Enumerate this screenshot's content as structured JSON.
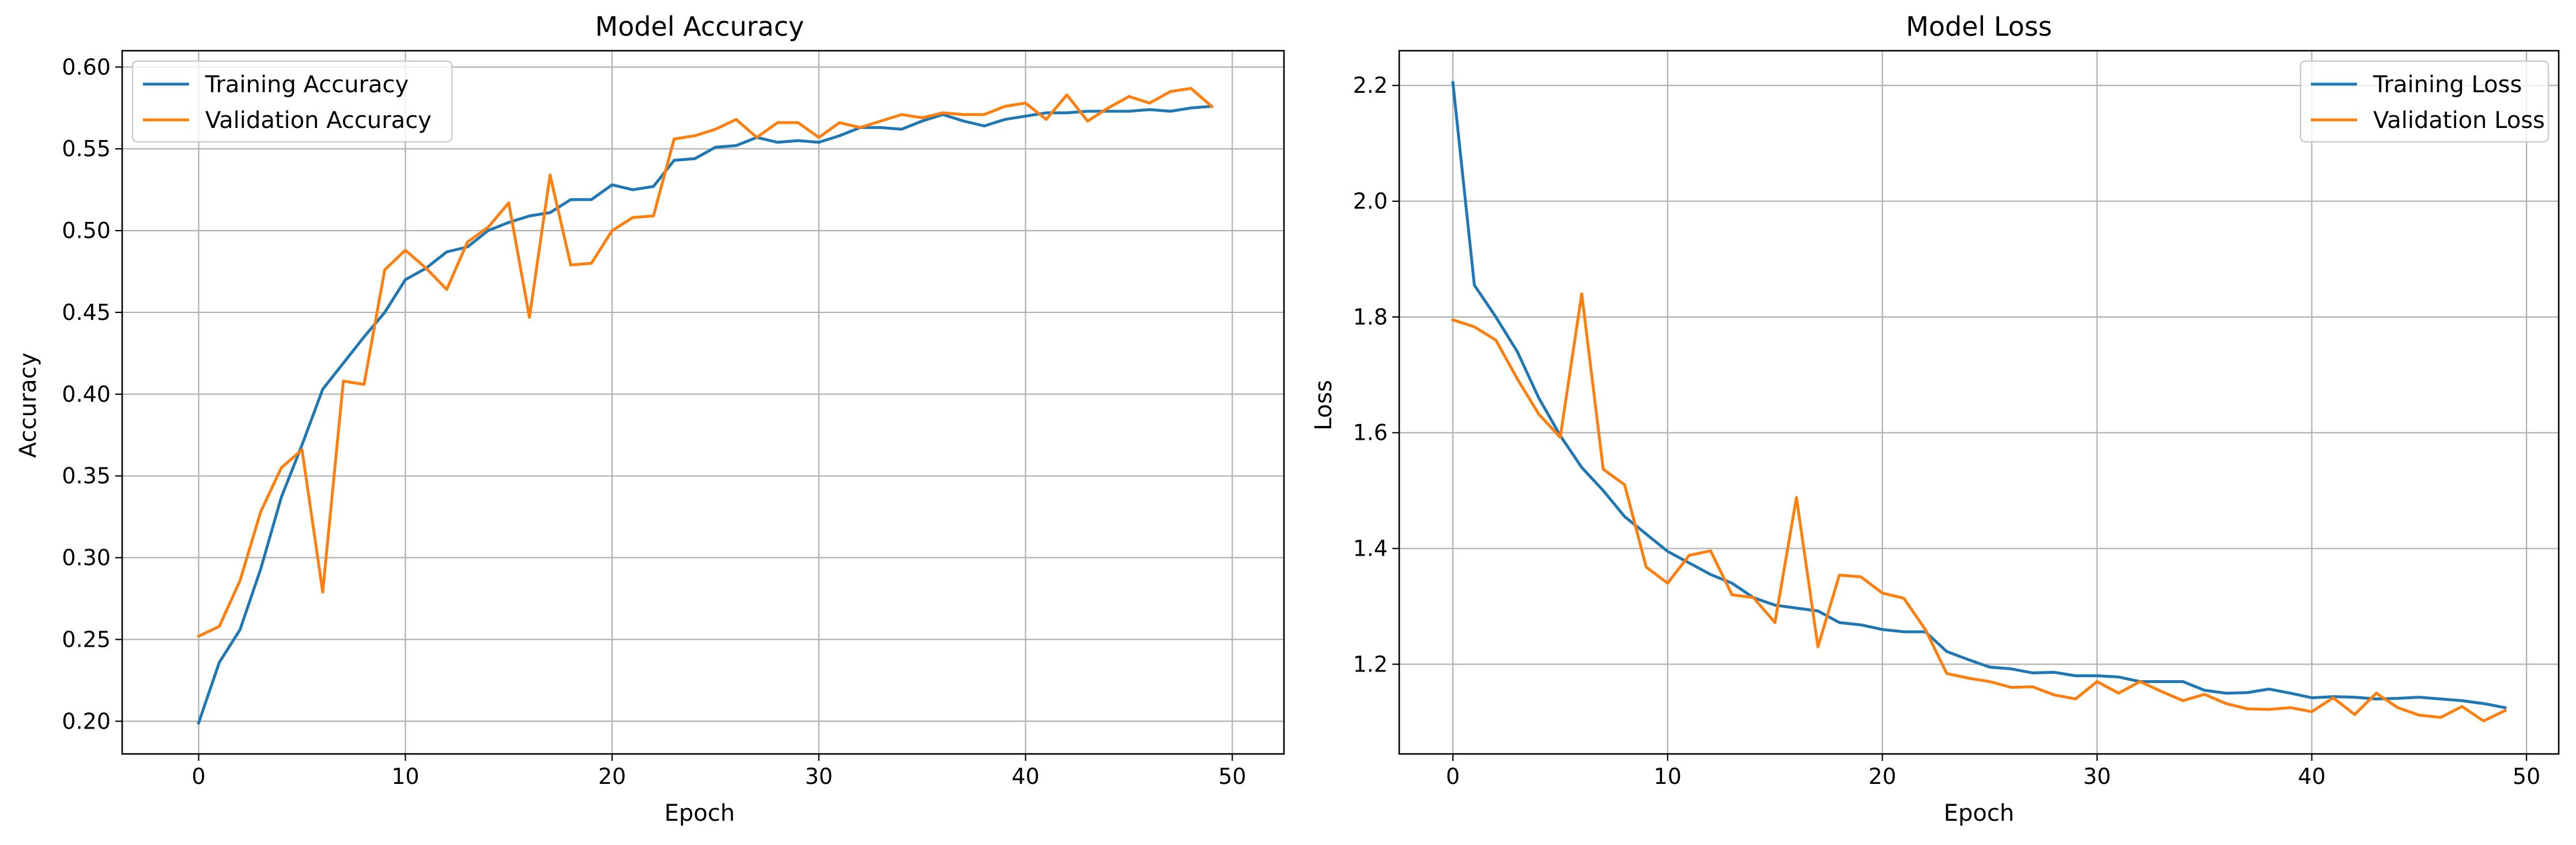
{
  "chart_data": [
    {
      "type": "line",
      "title": "Model Accuracy",
      "xlabel": "Epoch",
      "ylabel": "Accuracy",
      "xlim": [
        -3.7,
        52.5
      ],
      "ylim": [
        0.18,
        0.61
      ],
      "xticks": [
        0,
        10,
        20,
        30,
        40,
        50
      ],
      "yticks": [
        0.2,
        0.25,
        0.3,
        0.35,
        0.4,
        0.45,
        0.5,
        0.55,
        0.6
      ],
      "ytick_labels": [
        "0.20",
        "0.25",
        "0.30",
        "0.35",
        "0.40",
        "0.45",
        "0.50",
        "0.55",
        "0.60"
      ],
      "grid": true,
      "legend_position": "upper left",
      "x": [
        0,
        1,
        2,
        3,
        4,
        5,
        6,
        7,
        8,
        9,
        10,
        11,
        12,
        13,
        14,
        15,
        16,
        17,
        18,
        19,
        20,
        21,
        22,
        23,
        24,
        25,
        26,
        27,
        28,
        29,
        30,
        31,
        32,
        33,
        34,
        35,
        36,
        37,
        38,
        39,
        40,
        41,
        42,
        43,
        44,
        45,
        46,
        47,
        48,
        49
      ],
      "series": [
        {
          "name": "Training Accuracy",
          "color": "#1f77b4",
          "values": [
            0.199,
            0.236,
            0.256,
            0.293,
            0.337,
            0.369,
            0.403,
            0.419,
            0.435,
            0.45,
            0.47,
            0.477,
            0.487,
            0.49,
            0.5,
            0.505,
            0.509,
            0.511,
            0.519,
            0.519,
            0.528,
            0.525,
            0.527,
            0.543,
            0.544,
            0.551,
            0.552,
            0.557,
            0.554,
            0.555,
            0.554,
            0.558,
            0.563,
            0.563,
            0.562,
            0.567,
            0.571,
            0.567,
            0.564,
            0.568,
            0.57,
            0.572,
            0.572,
            0.573,
            0.573,
            0.573,
            0.574,
            0.573,
            0.575,
            0.576
          ]
        },
        {
          "name": "Validation Accuracy",
          "color": "#ff7f0e",
          "values": [
            0.252,
            0.258,
            0.286,
            0.328,
            0.355,
            0.366,
            0.279,
            0.408,
            0.406,
            0.476,
            0.488,
            0.477,
            0.464,
            0.493,
            0.502,
            0.517,
            0.447,
            0.534,
            0.479,
            0.48,
            0.5,
            0.508,
            0.509,
            0.556,
            0.558,
            0.562,
            0.568,
            0.557,
            0.566,
            0.566,
            0.557,
            0.566,
            0.563,
            0.567,
            0.571,
            0.569,
            0.572,
            0.571,
            0.571,
            0.576,
            0.578,
            0.568,
            0.583,
            0.567,
            0.575,
            0.582,
            0.578,
            0.585,
            0.587,
            0.576
          ]
        }
      ]
    },
    {
      "type": "line",
      "title": "Model Loss",
      "xlabel": "Epoch",
      "ylabel": "Loss",
      "xlim": [
        -2.5,
        51.5
      ],
      "ylim": [
        1.045,
        2.26
      ],
      "xticks": [
        0,
        10,
        20,
        30,
        40,
        50
      ],
      "yticks": [
        1.2,
        1.4,
        1.6,
        1.8,
        2.0,
        2.2
      ],
      "ytick_labels": [
        "1.2",
        "1.4",
        "1.6",
        "1.8",
        "2.0",
        "2.2"
      ],
      "grid": true,
      "legend_position": "upper right",
      "x": [
        0,
        1,
        2,
        3,
        4,
        5,
        6,
        7,
        8,
        9,
        10,
        11,
        12,
        13,
        14,
        15,
        16,
        17,
        18,
        19,
        20,
        21,
        22,
        23,
        24,
        25,
        26,
        27,
        28,
        29,
        30,
        31,
        32,
        33,
        34,
        35,
        36,
        37,
        38,
        39,
        40,
        41,
        42,
        43,
        44,
        45,
        46,
        47,
        48,
        49
      ],
      "series": [
        {
          "name": "Training Loss",
          "color": "#1f77b4",
          "values": [
            2.205,
            1.855,
            1.8,
            1.74,
            1.66,
            1.595,
            1.54,
            1.5,
            1.455,
            1.425,
            1.395,
            1.375,
            1.355,
            1.34,
            1.315,
            1.302,
            1.297,
            1.292,
            1.272,
            1.268,
            1.26,
            1.256,
            1.256,
            1.222,
            1.208,
            1.195,
            1.192,
            1.185,
            1.186,
            1.18,
            1.18,
            1.178,
            1.17,
            1.17,
            1.17,
            1.155,
            1.15,
            1.151,
            1.157,
            1.15,
            1.142,
            1.144,
            1.143,
            1.14,
            1.141,
            1.143,
            1.14,
            1.137,
            1.132,
            1.125
          ]
        },
        {
          "name": "Validation Loss",
          "color": "#ff7f0e",
          "values": [
            1.795,
            1.783,
            1.76,
            1.693,
            1.632,
            1.592,
            1.84,
            1.537,
            1.51,
            1.368,
            1.34,
            1.388,
            1.396,
            1.32,
            1.315,
            1.272,
            1.488,
            1.23,
            1.354,
            1.351,
            1.323,
            1.314,
            1.26,
            1.184,
            1.176,
            1.17,
            1.16,
            1.161,
            1.147,
            1.14,
            1.17,
            1.15,
            1.17,
            1.153,
            1.137,
            1.148,
            1.132,
            1.123,
            1.122,
            1.125,
            1.118,
            1.142,
            1.113,
            1.15,
            1.125,
            1.112,
            1.108,
            1.127,
            1.102,
            1.12
          ]
        }
      ]
    }
  ]
}
